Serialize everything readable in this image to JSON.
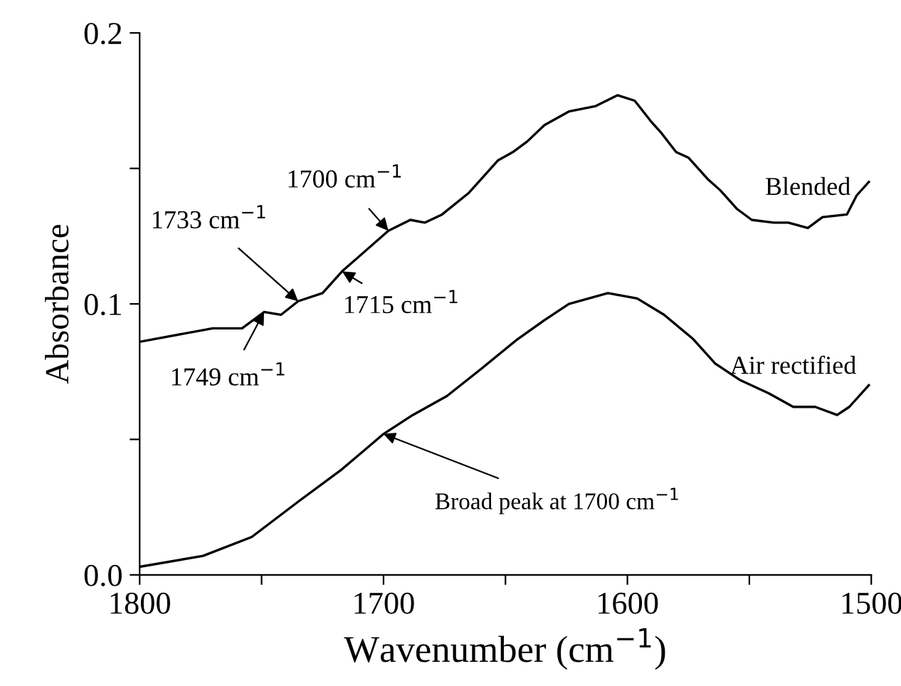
{
  "chart_data": {
    "type": "line",
    "xlabel": "Wavenumber (cm$^{−1}$)",
    "ylabel": "Absorbance",
    "xlim": [
      1800,
      1500
    ],
    "ylim": [
      0.0,
      0.2
    ],
    "xticks": [
      1800,
      {
        "value": 1750,
        "label": null
      },
      1700,
      {
        "value": 1650,
        "label": null
      },
      1600,
      {
        "value": 1550,
        "label": null
      },
      1500
    ],
    "yticks": [
      {
        "value": 0.0,
        "label": "0.0"
      },
      {
        "value": 0.05,
        "label": null
      },
      0.1,
      {
        "value": 0.15,
        "label": null
      },
      0.2
    ],
    "grid": false,
    "legend": false,
    "marker": "none",
    "line_style": "solid",
    "series": [
      {
        "name": "Blended",
        "color": "#000000",
        "x": [
          1800,
          1770,
          1758,
          1749,
          1742,
          1735,
          1725,
          1717,
          1698,
          1689,
          1683,
          1676,
          1665,
          1653,
          1647,
          1641,
          1634,
          1624,
          1613,
          1604,
          1597,
          1590,
          1586,
          1580,
          1575,
          1567,
          1562,
          1555,
          1549,
          1540,
          1534,
          1526,
          1520,
          1510,
          1506,
          1501
        ],
        "values": [
          0.086,
          0.091,
          0.091,
          0.097,
          0.096,
          0.101,
          0.104,
          0.112,
          0.127,
          0.131,
          0.13,
          0.133,
          0.141,
          0.153,
          0.156,
          0.16,
          0.166,
          0.171,
          0.173,
          0.177,
          0.175,
          0.167,
          0.163,
          0.156,
          0.154,
          0.146,
          0.142,
          0.135,
          0.131,
          0.13,
          0.13,
          0.128,
          0.132,
          0.133,
          0.14,
          0.145
        ]
      },
      {
        "name": "Air rectified",
        "color": "#000000",
        "x": [
          1800,
          1774,
          1754,
          1735,
          1717,
          1700,
          1688,
          1674,
          1660,
          1645,
          1634,
          1624,
          1608,
          1596,
          1585,
          1573,
          1564,
          1554,
          1542,
          1532,
          1523,
          1514,
          1509,
          1501
        ],
        "values": [
          0.003,
          0.007,
          0.014,
          0.027,
          0.039,
          0.052,
          0.059,
          0.066,
          0.076,
          0.087,
          0.094,
          0.1,
          0.104,
          0.102,
          0.096,
          0.087,
          0.078,
          0.072,
          0.067,
          0.062,
          0.062,
          0.059,
          0.062,
          0.07
        ]
      }
    ],
    "annotations": [
      {
        "text": "1749 cm$^{−1}$",
        "x": 1749,
        "y": 0.097
      },
      {
        "text": "1733 cm$^{−1}$",
        "x": 1735,
        "y": 0.101
      },
      {
        "text": "1715 cm$^{−1}$",
        "x": 1717,
        "y": 0.112
      },
      {
        "text": "1700 cm$^{−1}$",
        "x": 1698,
        "y": 0.127
      },
      {
        "text": "Broad peak at 1700 cm$^{−1}$",
        "x": 1700,
        "y": 0.052
      }
    ]
  }
}
